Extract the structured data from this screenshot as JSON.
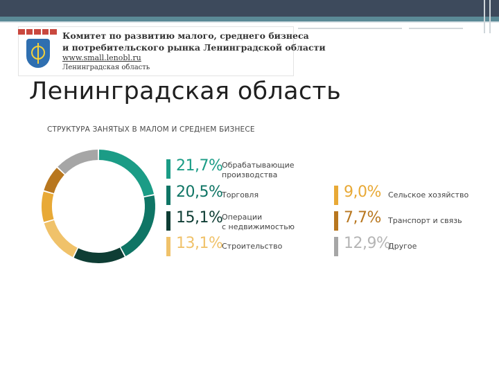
{
  "header": {
    "logo_org_line1": "Комитет по развитию малого, среднего бизнеса",
    "logo_org_line2": "и потребительского рынка Ленинградской области",
    "logo_url": "www.small.lenobl.ru",
    "logo_region": "Ленинградская область"
  },
  "slide": {
    "title": "Ленинградская область"
  },
  "colors": {
    "dark_teal": "#0e3d34",
    "teal": "#15826f",
    "mid_teal": "#0f7565",
    "light_teal": "#1b9c86",
    "gold": "#e8a936",
    "light_gold": "#f0b84a",
    "brown": "#b8771f",
    "grey": "#a6a6a6"
  },
  "chart_data": {
    "type": "pie",
    "title": "СТРУКТУРА ЗАНЯТЫХ В МАЛОМ И СРЕДНЕМ БИЗНЕСЕ",
    "slices": [
      {
        "label": "Обрабатывающие производства",
        "value": 21.7,
        "display": "21,7%",
        "color": "#1b9c86"
      },
      {
        "label": "Торговля",
        "value": 20.5,
        "display": "20,5%",
        "color": "#0f7565"
      },
      {
        "label": "Операции с недвижимостью",
        "value": 15.1,
        "display": "15,1%",
        "color": "#0e3d34"
      },
      {
        "label": "Строительство",
        "value": 13.1,
        "display": "13,1%",
        "color": "#f0c26a"
      },
      {
        "label": "Сельское хозяйство",
        "value": 9.0,
        "display": "9,0%",
        "color": "#e8a936"
      },
      {
        "label": "Транспорт и связь",
        "value": 7.7,
        "display": "7,7%",
        "color": "#b8771f"
      },
      {
        "label": "Другое",
        "value": 12.9,
        "display": "12,9%",
        "color": "#a6a6a6"
      }
    ]
  }
}
